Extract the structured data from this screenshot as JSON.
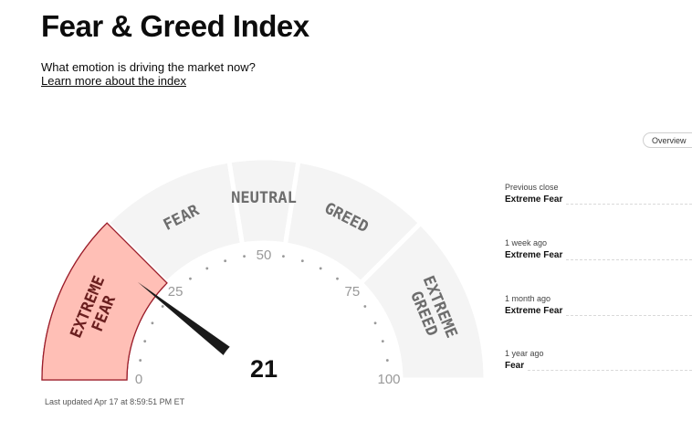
{
  "header": {
    "title": "Fear & Greed Index",
    "subtitle": "What emotion is driving the market now?",
    "learn_more": "Learn more about the index"
  },
  "gauge": {
    "value": 21,
    "value_text": "21",
    "range": [
      0,
      100
    ],
    "segments": [
      {
        "label_lines": [
          "EXTREME",
          "FEAR"
        ],
        "from": 0,
        "to": 25,
        "active": true
      },
      {
        "label_lines": [
          "FEAR"
        ],
        "from": 25,
        "to": 45,
        "active": false
      },
      {
        "label_lines": [
          "NEUTRAL"
        ],
        "from": 45,
        "to": 55,
        "active": false
      },
      {
        "label_lines": [
          "GREED"
        ],
        "from": 55,
        "to": 75,
        "active": false
      },
      {
        "label_lines": [
          "EXTREME",
          "GREED"
        ],
        "from": 75,
        "to": 100,
        "active": false
      }
    ],
    "scale_labels": [
      {
        "value": 0,
        "text": "0"
      },
      {
        "value": 25,
        "text": "25"
      },
      {
        "value": 50,
        "text": "50"
      },
      {
        "value": 75,
        "text": "75"
      },
      {
        "value": 100,
        "text": "100"
      }
    ],
    "colors": {
      "segment_bg": "#f4f4f4",
      "segment_border": "#ffffff",
      "active_fill": "#ffbfb6",
      "active_stroke": "#9b1d2a",
      "needle": "#1a1a1a",
      "dots": "#999999"
    }
  },
  "overview_button": "Overview",
  "history": [
    {
      "label": "Previous close",
      "value": "Extreme Fear"
    },
    {
      "label": "1 week ago",
      "value": "Extreme Fear"
    },
    {
      "label": "1 month ago",
      "value": "Extreme Fear"
    },
    {
      "label": "1 year ago",
      "value": "Fear"
    }
  ],
  "last_updated": "Last updated Apr 17 at 8:59:51 PM ET"
}
